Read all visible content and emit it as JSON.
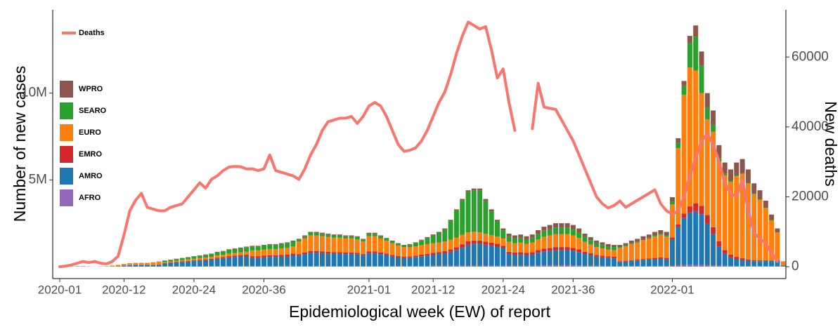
{
  "chart_data": {
    "type": "bar",
    "stacked": true,
    "legend": "top-left",
    "x_label": "Epidemiological week (EW) of report",
    "y_label": "Number of new cases",
    "y2_label": "New deaths",
    "categories": [
      "2020-01",
      null,
      null,
      null,
      null,
      null,
      null,
      null,
      null,
      null,
      null,
      "2020-12",
      null,
      null,
      null,
      null,
      null,
      null,
      null,
      null,
      null,
      null,
      null,
      "2020-24",
      null,
      null,
      null,
      null,
      null,
      null,
      null,
      null,
      null,
      null,
      null,
      "2020-36",
      null,
      null,
      null,
      null,
      null,
      null,
      null,
      null,
      null,
      null,
      null,
      null,
      null,
      null,
      null,
      null,
      null,
      "2021-01",
      null,
      null,
      null,
      null,
      null,
      null,
      null,
      null,
      null,
      null,
      "2021-12",
      null,
      null,
      null,
      null,
      null,
      null,
      null,
      null,
      null,
      null,
      null,
      "2021-24",
      null,
      null,
      null,
      null,
      null,
      null,
      null,
      null,
      null,
      null,
      null,
      "2021-36",
      null,
      null,
      null,
      null,
      null,
      null,
      null,
      null,
      null,
      null,
      null,
      null,
      null,
      null,
      null,
      null,
      "2022-01",
      null,
      null,
      null,
      null,
      null,
      null,
      null,
      null,
      null,
      null,
      null,
      null,
      null,
      null,
      null,
      null,
      null,
      null,
      null
    ],
    "ylim": [
      -690000,
      14800000
    ],
    "yticks": [
      {
        "value": 5000000,
        "label": "5M"
      },
      {
        "value": 10000000,
        "label": "10M"
      }
    ],
    "y2lim": [
      -3400,
      73500
    ],
    "y2ticks": [
      0,
      20000,
      40000,
      60000
    ],
    "series": [
      {
        "name": "AFRO",
        "color": "#9467bd",
        "values": [
          0,
          0,
          0,
          0,
          0,
          0,
          0,
          0,
          0,
          0,
          1000,
          2000,
          2000,
          2000,
          2000,
          2000,
          3000,
          3000,
          11000,
          12000,
          14000,
          15000,
          17000,
          18000,
          20000,
          21000,
          23000,
          26000,
          27000,
          30000,
          32000,
          33000,
          35000,
          36000,
          36000,
          38000,
          39000,
          39000,
          41000,
          42000,
          45000,
          32000,
          36000,
          40000,
          40000,
          39000,
          38000,
          37000,
          37000,
          36000,
          36000,
          35000,
          32000,
          39000,
          39000,
          36000,
          33000,
          30000,
          27000,
          25000,
          30000,
          35000,
          40000,
          40000,
          45000,
          50000,
          50000,
          55000,
          55000,
          55000,
          55000,
          55000,
          55000,
          55000,
          55000,
          50000,
          50000,
          57000,
          54000,
          55000,
          52000,
          55000,
          63000,
          69000,
          72000,
          75000,
          75000,
          75000,
          72000,
          66000,
          57000,
          51000,
          45000,
          42000,
          39000,
          38000,
          25000,
          27000,
          30000,
          32000,
          35000,
          37000,
          40000,
          42000,
          40000,
          60000,
          80000,
          100000,
          120000,
          100000,
          100000,
          80000,
          70000,
          60000,
          50000,
          40000,
          40000,
          30000,
          30000,
          30000,
          30000,
          30000,
          25000,
          20000,
          5000
        ]
      },
      {
        "name": "AMRO",
        "color": "#1f77b4",
        "values": [
          0,
          0,
          0,
          0,
          0,
          0,
          0,
          0,
          1000,
          5000,
          20000,
          52000,
          70000,
          77000,
          77000,
          77000,
          88000,
          105000,
          175000,
          200000,
          225000,
          250000,
          275000,
          300000,
          325000,
          350000,
          375000,
          425000,
          450000,
          500000,
          525000,
          550000,
          575000,
          480000,
          480000,
          500000,
          520000,
          520000,
          540000,
          560000,
          600000,
          608000,
          684000,
          760000,
          760000,
          741000,
          722000,
          703000,
          703000,
          684000,
          684000,
          665000,
          608000,
          741000,
          741000,
          684000,
          627000,
          570000,
          513000,
          475000,
          500000,
          520000,
          560000,
          600000,
          640000,
          680000,
          720000,
          800000,
          900000,
          1050000,
          1200000,
          1250000,
          1250000,
          1200000,
          1150000,
          1100000,
          1000000,
          665000,
          630000,
          647000,
          613000,
          647000,
          735000,
          805000,
          840000,
          875000,
          875000,
          875000,
          840000,
          770000,
          665000,
          595000,
          525000,
          490000,
          455000,
          437000,
          250000,
          270000,
          300000,
          320000,
          350000,
          370000,
          400000,
          420000,
          400000,
          1500000,
          2200000,
          2700000,
          3000000,
          3100000,
          2900000,
          2400000,
          1800000,
          1100000,
          700000,
          500000,
          400000,
          350000,
          300000,
          280000,
          280000,
          300000,
          300000,
          320000,
          60000
        ]
      },
      {
        "name": "EMRO",
        "color": "#d62728",
        "values": [
          0,
          0,
          0,
          0,
          0,
          0,
          1000,
          3000,
          6000,
          8000,
          10000,
          10000,
          14000,
          15000,
          15000,
          15000,
          18000,
          21000,
          25000,
          28000,
          32000,
          35000,
          39000,
          42000,
          46000,
          49000,
          53000,
          60000,
          63000,
          70000,
          74000,
          77000,
          81000,
          84000,
          84000,
          88000,
          91000,
          91000,
          95000,
          98000,
          105000,
          80000,
          90000,
          100000,
          100000,
          98000,
          95000,
          93000,
          93000,
          90000,
          90000,
          88000,
          80000,
          98000,
          98000,
          90000,
          83000,
          75000,
          68000,
          63000,
          65000,
          75000,
          85000,
          95000,
          105000,
          110000,
          120000,
          140000,
          160000,
          180000,
          200000,
          200000,
          190000,
          180000,
          170000,
          160000,
          150000,
          133000,
          126000,
          130000,
          122000,
          130000,
          147000,
          161000,
          168000,
          175000,
          175000,
          175000,
          168000,
          154000,
          133000,
          119000,
          105000,
          98000,
          91000,
          88000,
          38000,
          40000,
          45000,
          48000,
          52000,
          55000,
          60000,
          63000,
          60000,
          120000,
          150000,
          250000,
          350000,
          450000,
          500000,
          500000,
          400000,
          300000,
          200000,
          150000,
          120000,
          100000,
          80000,
          60000,
          50000,
          40000,
          30000,
          25000,
          5000
        ]
      },
      {
        "name": "EURO",
        "color": "#ff7f0e",
        "values": [
          0,
          0,
          0,
          0,
          1000,
          1000,
          3000,
          8000,
          20000,
          45000,
          65000,
          78000,
          104000,
          114000,
          114000,
          114000,
          130000,
          156000,
          52000,
          60000,
          68000,
          75000,
          82000,
          90000,
          97000,
          105000,
          112000,
          127000,
          135000,
          150000,
          157000,
          165000,
          172000,
          336000,
          336000,
          350000,
          364000,
          364000,
          378000,
          392000,
          420000,
          720000,
          810000,
          900000,
          900000,
          877000,
          855000,
          832000,
          832000,
          810000,
          810000,
          787000,
          720000,
          877000,
          877000,
          810000,
          742000,
          675000,
          607000,
          562000,
          520000,
          540000,
          550000,
          560000,
          560000,
          550000,
          550000,
          560000,
          560000,
          550000,
          520000,
          500000,
          480000,
          450000,
          430000,
          420000,
          420000,
          570000,
          540000,
          555000,
          525000,
          555000,
          630000,
          690000,
          720000,
          750000,
          750000,
          750000,
          720000,
          660000,
          570000,
          510000,
          450000,
          420000,
          390000,
          375000,
          775000,
          837000,
          930000,
          992000,
          1085000,
          1147000,
          1240000,
          1302000,
          1240000,
          1900000,
          4400000,
          6850000,
          8000000,
          7650000,
          6500000,
          5500000,
          5500000,
          4600000,
          4300000,
          4200000,
          4650000,
          4870000,
          4400000,
          3800000,
          3500000,
          3000000,
          2300000,
          1600000,
          200000
        ]
      },
      {
        "name": "SEARO",
        "color": "#2ca02c",
        "values": [
          0,
          0,
          0,
          0,
          0,
          0,
          0,
          0,
          0,
          0,
          1000,
          3000,
          4000,
          4000,
          4000,
          4000,
          5000,
          6000,
          77000,
          88000,
          99000,
          110000,
          121000,
          132000,
          143000,
          154000,
          165000,
          187000,
          198000,
          220000,
          231000,
          242000,
          253000,
          228000,
          228000,
          238000,
          247000,
          247000,
          256000,
          266000,
          285000,
          112000,
          126000,
          140000,
          140000,
          137000,
          133000,
          130000,
          130000,
          126000,
          126000,
          123000,
          112000,
          137000,
          137000,
          126000,
          116000,
          105000,
          95000,
          88000,
          140000,
          185000,
          270000,
          360000,
          450000,
          550000,
          700000,
          1080000,
          1550000,
          1990000,
          2340000,
          2395000,
          2420000,
          1910000,
          1385000,
          860000,
          470000,
          285000,
          270000,
          278000,
          263000,
          278000,
          315000,
          345000,
          360000,
          375000,
          375000,
          375000,
          360000,
          330000,
          285000,
          255000,
          225000,
          210000,
          195000,
          187000,
          37000,
          41000,
          45000,
          48000,
          53000,
          56000,
          60000,
          63000,
          60000,
          200000,
          300000,
          500000,
          1430000,
          1950000,
          1600000,
          700000,
          400000,
          200000,
          100000,
          60000,
          40000,
          30000,
          20000,
          20000,
          20000,
          20000,
          15000,
          15000,
          5000
        ]
      },
      {
        "name": "WPRO",
        "color": "#8c564b",
        "values": [
          2000,
          3000,
          10000,
          20000,
          19000,
          9000,
          4000,
          3000,
          3000,
          3000,
          3000,
          5000,
          6000,
          7000,
          7000,
          7000,
          8000,
          9000,
          10000,
          12000,
          14000,
          15000,
          17000,
          18000,
          20000,
          21000,
          23000,
          26000,
          27000,
          30000,
          32000,
          33000,
          35000,
          36000,
          36000,
          38000,
          39000,
          39000,
          41000,
          42000,
          45000,
          48000,
          54000,
          60000,
          60000,
          59000,
          57000,
          56000,
          56000,
          54000,
          54000,
          53000,
          48000,
          59000,
          59000,
          54000,
          50000,
          45000,
          41000,
          38000,
          45000,
          45000,
          45000,
          45000,
          55000,
          60000,
          60000,
          65000,
          75000,
          75000,
          85000,
          100000,
          105000,
          105000,
          110000,
          110000,
          110000,
          190000,
          180000,
          185000,
          175000,
          185000,
          210000,
          230000,
          240000,
          250000,
          250000,
          250000,
          240000,
          220000,
          190000,
          170000,
          150000,
          140000,
          130000,
          125000,
          125000,
          135000,
          150000,
          160000,
          175000,
          185000,
          200000,
          210000,
          200000,
          220000,
          270000,
          300000,
          400000,
          650000,
          800000,
          820000,
          830000,
          740000,
          650000,
          650000,
          750000,
          820000,
          770000,
          610000,
          520000,
          410000,
          330000,
          220000,
          25000
        ]
      },
      {
        "name": "Deaths",
        "color": "#f8766d",
        "type": "line",
        "axis": "y2",
        "values": [
          0,
          200,
          500,
          1000,
          1500,
          1200,
          1500,
          1000,
          800,
          1500,
          3000,
          9000,
          16000,
          19000,
          21000,
          17000,
          16500,
          16000,
          16000,
          17000,
          17500,
          18000,
          20000,
          22000,
          24000,
          22500,
          25000,
          26000,
          27500,
          28500,
          28700,
          28600,
          28000,
          28000,
          27500,
          28000,
          32000,
          27500,
          27000,
          26500,
          26000,
          25000,
          28000,
          32000,
          35000,
          39000,
          41500,
          42000,
          42500,
          42500,
          43000,
          41000,
          43000,
          46000,
          47000,
          46000,
          43000,
          39000,
          35000,
          33000,
          33300,
          34000,
          36000,
          39000,
          43000,
          47000,
          50000,
          55000,
          61000,
          66000,
          70000,
          69000,
          68000,
          68700,
          62000,
          54000,
          56600,
          47000,
          39000,
          null,
          null,
          39500,
          52500,
          45700,
          45300,
          45000,
          42000,
          39000,
          36000,
          32000,
          28000,
          24000,
          20000,
          18000,
          16800,
          17500,
          18800,
          17000,
          18000,
          19000,
          20000,
          21000,
          22000,
          18000,
          16000,
          15000,
          16000,
          20000,
          26000,
          31000,
          36000,
          38000,
          35000,
          30000,
          24000,
          21000,
          20000,
          25000,
          16000,
          9700,
          8000,
          6700,
          4000,
          1500,
          null
        ]
      }
    ]
  }
}
